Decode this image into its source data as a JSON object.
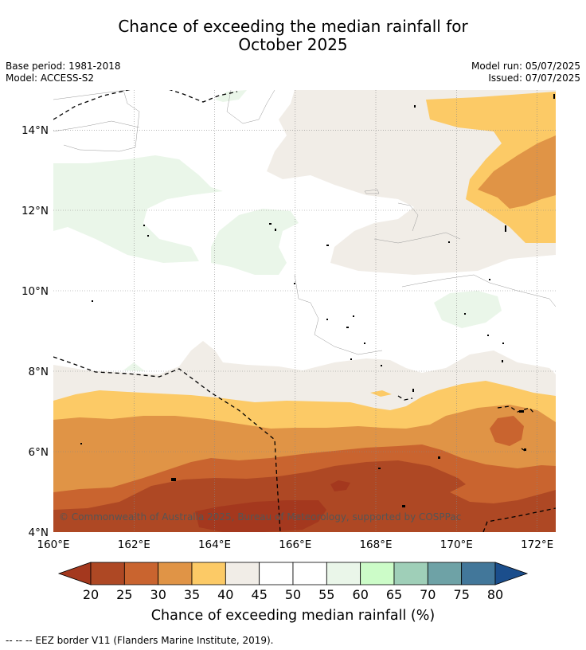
{
  "title_line1": "Chance of exceeding the median rainfall for",
  "title_line2": "October 2025",
  "left_meta": [
    "Base period: 1981-2018",
    "Model: ACCESS-S2"
  ],
  "right_meta": [
    "Model run: 05/07/2025",
    "Issued: 07/07/2025"
  ],
  "x_ticks": [
    "160°E",
    "162°E",
    "164°E",
    "166°E",
    "168°E",
    "170°E",
    "172°E"
  ],
  "y_ticks": [
    "14°N",
    "12°N",
    "10°N",
    "8°N",
    "6°N",
    "4°N"
  ],
  "copyright": "© Commonwealth of Australia 2025, Bureau of Meteorology, supported by COSPPac",
  "colorbar": {
    "ticks": [
      "20",
      "25",
      "30",
      "35",
      "40",
      "45",
      "50",
      "55",
      "60",
      "65",
      "70",
      "75",
      "80"
    ],
    "colors": [
      "#a4381e",
      "#ae4824",
      "#c9642f",
      "#e09446",
      "#fcca66",
      "#f1ede7",
      "#ffffff",
      "#ffffff",
      "#eaf6e9",
      "#ccfcc8",
      "#9fcfb8",
      "#6ea2a6",
      "#42779a",
      "#1b4e8c"
    ],
    "title": "Chance of exceeding median rainfall (%)"
  },
  "footnote": "-- -- -- EEZ border V11 (Flanders Marine Institute, 2019).",
  "colors": {
    "lt20": "#a4381e",
    "c20_25": "#ae4824",
    "c25_30": "#c9642f",
    "c30_35": "#e09446",
    "c35_40": "#fcca66",
    "c40_45": "#f1ede7",
    "c45_55": "#ffffff",
    "c55_60": "#eaf6e9"
  }
}
